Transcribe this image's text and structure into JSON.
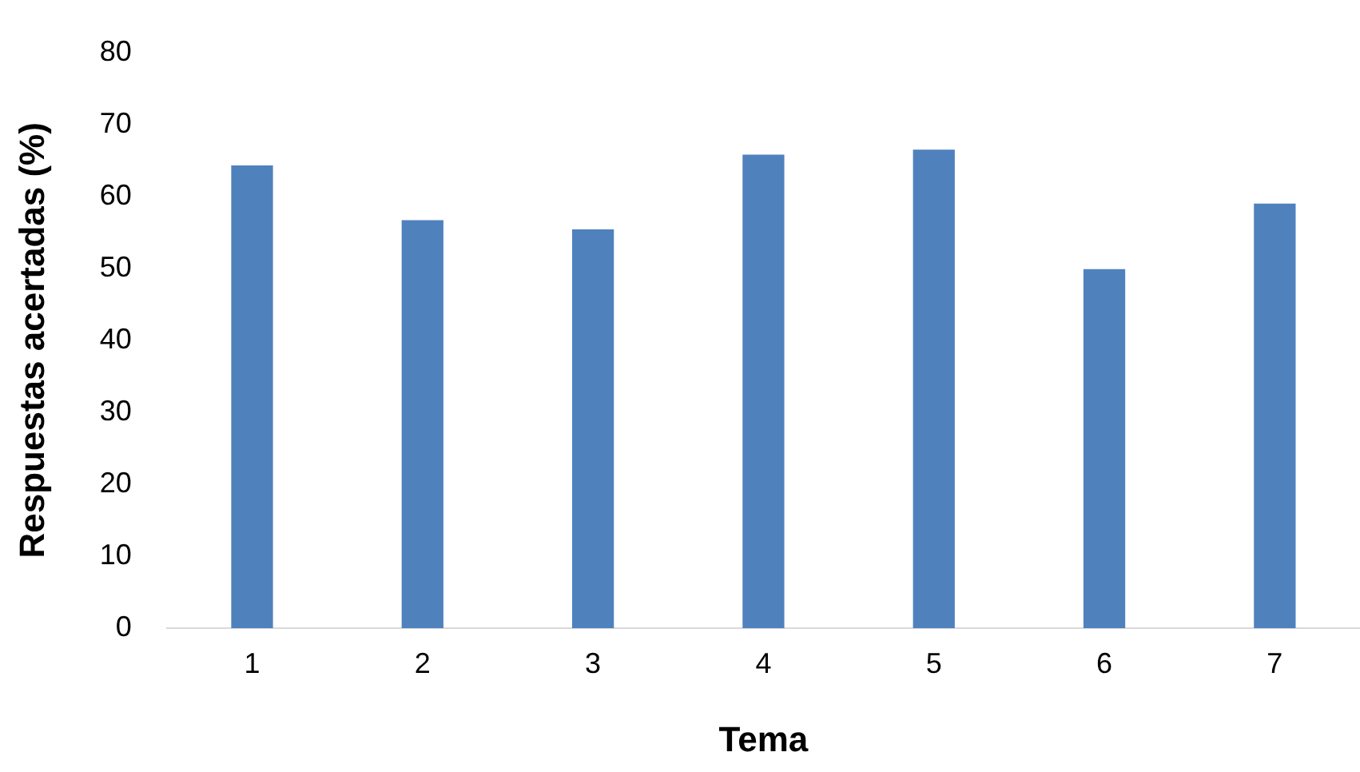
{
  "chart_data": {
    "type": "bar",
    "xlabel": "Tema",
    "ylabel": "Respuestas acertadas (%)",
    "categories": [
      "1",
      "2",
      "3",
      "4",
      "5",
      "6",
      "7"
    ],
    "values": [
      64.3,
      56.7,
      55.4,
      65.8,
      66.5,
      49.9,
      59.0
    ],
    "color": "#4f81bd",
    "ylim": [
      0,
      80
    ],
    "yticks": [
      0,
      10,
      20,
      30,
      40,
      50,
      60,
      70,
      80
    ],
    "grid": false,
    "legend": false
  }
}
